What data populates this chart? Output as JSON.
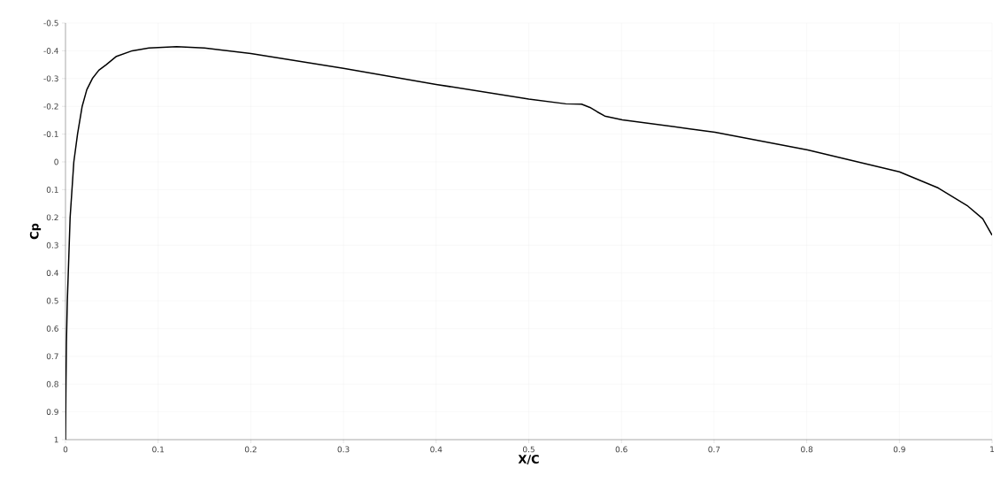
{
  "chart_data": {
    "type": "line",
    "xlabel": "X/C",
    "ylabel": "Cp",
    "xlim": [
      0,
      1
    ],
    "ylim": [
      1,
      -0.5
    ],
    "xticks": [
      0,
      0.1,
      0.2,
      0.3,
      0.4,
      0.5,
      0.6,
      0.7,
      0.8,
      0.9,
      1
    ],
    "yticks": [
      -0.5,
      -0.4,
      -0.3,
      -0.2,
      -0.1,
      0,
      0.1,
      0.2,
      0.3,
      0.4,
      0.5,
      0.6,
      0.7,
      0.8,
      0.9,
      1
    ],
    "grid": true,
    "marker": "none",
    "line_style": "solid",
    "series": [
      {
        "color": "#000000",
        "x": [
          0,
          0.0005,
          0.001,
          0.002,
          0.005,
          0.009,
          0.013,
          0.018,
          0.023,
          0.029,
          0.036,
          0.044,
          0.055,
          0.072,
          0.09,
          0.12,
          0.15,
          0.2,
          0.3,
          0.4,
          0.5,
          0.54,
          0.557,
          0.566,
          0.574,
          0.582,
          0.601,
          0.674,
          0.701,
          0.801,
          0.9,
          0.942,
          0.973,
          0.99,
          1.0
        ],
        "values": [
          1.0,
          0.8,
          0.65,
          0.5,
          0.2,
          0.0,
          -0.1,
          -0.2,
          -0.26,
          -0.3,
          -0.33,
          -0.35,
          -0.38,
          -0.4,
          -0.41,
          -0.415,
          -0.41,
          -0.39,
          -0.337,
          -0.279,
          -0.226,
          -0.209,
          -0.208,
          -0.196,
          -0.18,
          -0.165,
          -0.151,
          -0.119,
          -0.107,
          -0.043,
          0.036,
          0.094,
          0.157,
          0.205,
          0.264
        ]
      }
    ]
  }
}
